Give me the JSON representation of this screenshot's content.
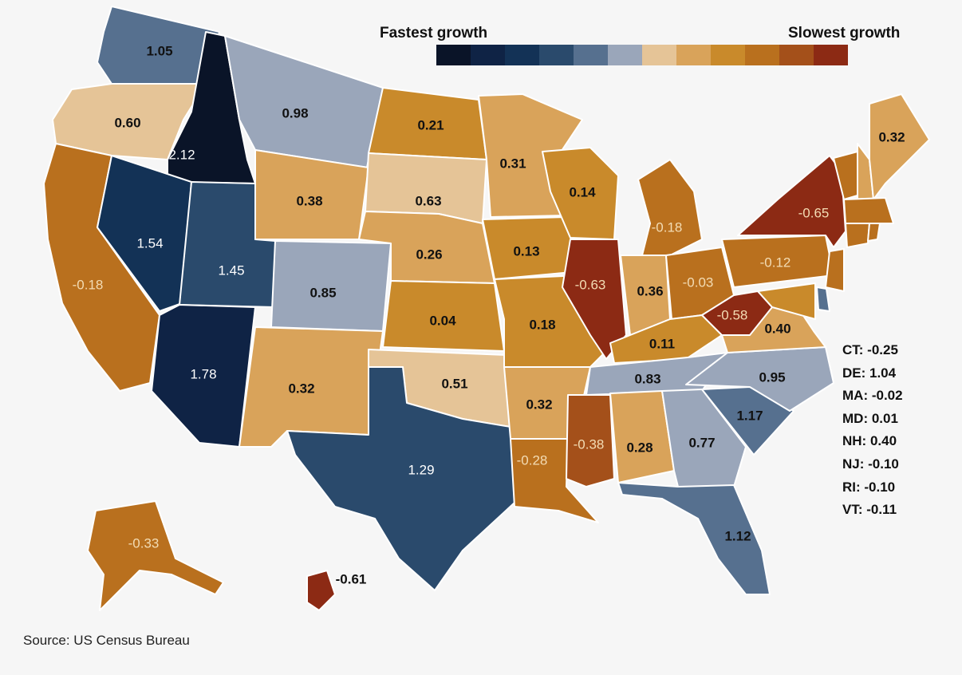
{
  "legend": {
    "left_label": "Fastest growth",
    "right_label": "Slowest growth",
    "colors": [
      "#0a1428",
      "#0f2345",
      "#133256",
      "#2a4a6c",
      "#56708f",
      "#9aa6ba",
      "#e5c497",
      "#d9a35a",
      "#c98a2b",
      "#b9701e",
      "#a4501a",
      "#8c2a14"
    ]
  },
  "states": {
    "WA": {
      "value": "1.05",
      "color": "#56708f"
    },
    "OR": {
      "value": "0.60",
      "color": "#e5c497"
    },
    "CA": {
      "value": "-0.18",
      "color": "#b9701e"
    },
    "ID": {
      "value": "2.12",
      "color": "#0a1428"
    },
    "NV": {
      "value": "1.54",
      "color": "#133256"
    },
    "UT": {
      "value": "1.45",
      "color": "#2a4a6c"
    },
    "AZ": {
      "value": "1.78",
      "color": "#0f2345"
    },
    "MT": {
      "value": "0.98",
      "color": "#9aa6ba"
    },
    "WY": {
      "value": "0.38",
      "color": "#d9a35a"
    },
    "CO": {
      "value": "0.85",
      "color": "#9aa6ba"
    },
    "NM": {
      "value": "0.32",
      "color": "#d9a35a"
    },
    "ND": {
      "value": "0.21",
      "color": "#c98a2b"
    },
    "SD": {
      "value": "0.63",
      "color": "#e5c497"
    },
    "NE": {
      "value": "0.26",
      "color": "#d9a35a"
    },
    "KS": {
      "value": "0.04",
      "color": "#c98a2b"
    },
    "OK": {
      "value": "0.51",
      "color": "#e5c497"
    },
    "TX": {
      "value": "1.29",
      "color": "#2a4a6c"
    },
    "MN": {
      "value": "0.31",
      "color": "#d9a35a"
    },
    "IA": {
      "value": "0.13",
      "color": "#c98a2b"
    },
    "MO": {
      "value": "0.18",
      "color": "#c98a2b"
    },
    "AR": {
      "value": "0.32",
      "color": "#d9a35a"
    },
    "LA": {
      "value": "-0.28",
      "color": "#b9701e"
    },
    "WI": {
      "value": "0.14",
      "color": "#c98a2b"
    },
    "IL": {
      "value": "-0.63",
      "color": "#8c2a14"
    },
    "MI": {
      "value": "-0.18",
      "color": "#b9701e"
    },
    "IN": {
      "value": "0.36",
      "color": "#d9a35a"
    },
    "OH": {
      "value": "-0.03",
      "color": "#b9701e"
    },
    "KY": {
      "value": "0.11",
      "color": "#c98a2b"
    },
    "TN": {
      "value": "0.83",
      "color": "#9aa6ba"
    },
    "MS": {
      "value": "-0.38",
      "color": "#a4501a"
    },
    "AL": {
      "value": "0.28",
      "color": "#d9a35a"
    },
    "GA": {
      "value": "0.77",
      "color": "#9aa6ba"
    },
    "FL": {
      "value": "1.12",
      "color": "#56708f"
    },
    "SC": {
      "value": "1.17",
      "color": "#56708f"
    },
    "NC": {
      "value": "0.95",
      "color": "#9aa6ba"
    },
    "VA": {
      "value": "0.40",
      "color": "#d9a35a"
    },
    "WV": {
      "value": "-0.58",
      "color": "#8c2a14"
    },
    "PA": {
      "value": "-0.12",
      "color": "#b9701e"
    },
    "NY": {
      "value": "-0.65",
      "color": "#8c2a14"
    },
    "ME": {
      "value": "0.32",
      "color": "#d9a35a"
    },
    "AK": {
      "value": "-0.33",
      "color": "#b9701e"
    },
    "HI": {
      "value": "-0.61",
      "color": "#8c2a14"
    },
    "VT": {
      "color": "#b9701e"
    },
    "NH": {
      "color": "#d9a35a"
    },
    "MA": {
      "color": "#b9701e"
    },
    "CT": {
      "color": "#b9701e"
    },
    "RI": {
      "color": "#b9701e"
    },
    "NJ": {
      "color": "#b9701e"
    },
    "DE": {
      "color": "#56708f"
    },
    "MD": {
      "color": "#c98a2b"
    }
  },
  "small_states": [
    {
      "label": "CT: -0.25"
    },
    {
      "label": "DE: 1.04"
    },
    {
      "label": "MA: -0.02"
    },
    {
      "label": "MD: 0.01"
    },
    {
      "label": "NH: 0.40"
    },
    {
      "label": "NJ: -0.10"
    },
    {
      "label": "RI: -0.10"
    },
    {
      "label": "VT: -0.11"
    }
  ],
  "source": "Source: US Census Bureau"
}
